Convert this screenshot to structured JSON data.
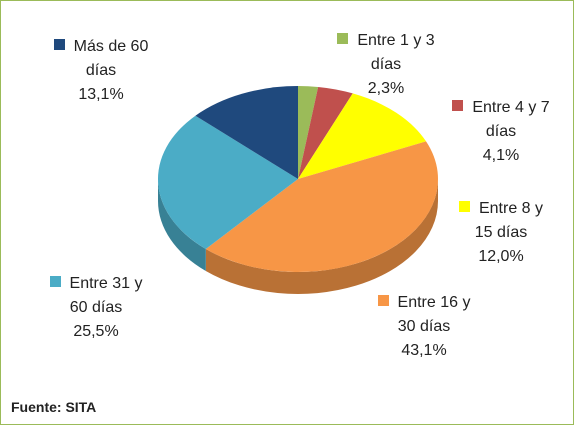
{
  "chart_data": {
    "type": "pie",
    "categories": [
      "Entre 1 y 3 días",
      "Entre 4 y 7 días",
      "Entre 8 y 15 días",
      "Entre 16 y 30 días",
      "Entre 31 y 60 días",
      "Más de 60 días"
    ],
    "values": [
      2.3,
      4.1,
      12.0,
      43.1,
      25.5,
      13.1
    ],
    "value_labels": [
      "2,3%",
      "4,1%",
      "12,0%",
      "43,1%",
      "25,5%",
      "13,1%"
    ],
    "colors": [
      "#9bbb59",
      "#c0504d",
      "#ffff00",
      "#f79646",
      "#4bacc6",
      "#1f497d"
    ],
    "source": "Fuente: SITA"
  }
}
